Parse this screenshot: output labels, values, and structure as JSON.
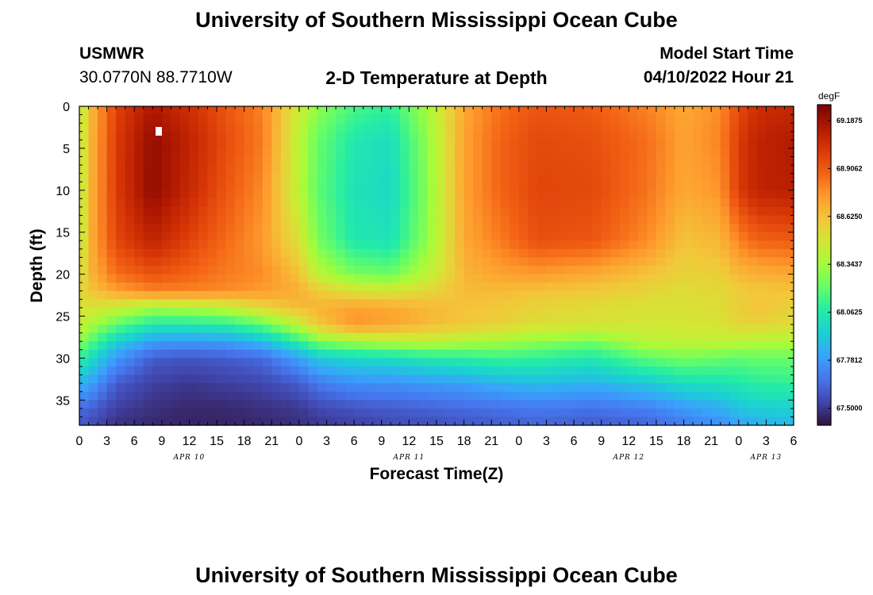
{
  "page": {
    "title": "University of Southern Mississippi Ocean Cube",
    "footer_title": "University of Southern Mississippi Ocean Cube",
    "station": "USMWR",
    "coords": "30.0770N  88.7710W",
    "model_start_label": "Model Start Time",
    "model_start_value": "04/10/2022 Hour 21"
  },
  "chart_data": {
    "type": "heatmap",
    "title": "2-D Temperature at Depth",
    "xlabel": "Forecast Time(Z)",
    "ylabel": "Depth (ft)",
    "xlim": [
      0,
      78
    ],
    "ylim": [
      38,
      0
    ],
    "x_ticks": [
      0,
      3,
      6,
      9,
      12,
      15,
      18,
      21,
      24,
      27,
      30,
      33,
      36,
      39,
      42,
      45,
      48,
      51,
      54,
      57,
      60,
      63,
      66,
      69,
      72,
      75,
      78
    ],
    "x_tick_labels": [
      "0",
      "3",
      "6",
      "9",
      "12",
      "15",
      "18",
      "21",
      "0",
      "3",
      "6",
      "9",
      "12",
      "15",
      "18",
      "21",
      "0",
      "3",
      "6",
      "9",
      "12",
      "15",
      "18",
      "21",
      "0",
      "3",
      "6"
    ],
    "y_ticks": [
      0,
      5,
      10,
      15,
      20,
      25,
      30,
      35
    ],
    "y_tick_labels": [
      "0",
      "5",
      "10",
      "15",
      "20",
      "25",
      "30",
      "35"
    ],
    "date_labels": [
      {
        "x": 12,
        "text": "APR 10"
      },
      {
        "x": 36,
        "text": "APR 11"
      },
      {
        "x": 60,
        "text": "APR 12"
      },
      {
        "x": 75,
        "text": "APR 13"
      }
    ],
    "colorbar": {
      "unit": "degF",
      "min": 67.4,
      "max": 69.28,
      "ticks": [
        69.1875,
        68.9062,
        68.625,
        68.3437,
        68.0625,
        67.7812,
        67.5
      ],
      "tick_labels": [
        "69.1875",
        "68.9062",
        "68.6250",
        "68.3437",
        "68.0625",
        "67.7812",
        "67.5000"
      ],
      "colors": [
        "#30123b",
        "#4145ab",
        "#4675ed",
        "#39a2fc",
        "#1bcfd4",
        "#24eca6",
        "#61fc6c",
        "#a4fc3b",
        "#d1e834",
        "#f3c63a",
        "#fe9b2d",
        "#f36315",
        "#d93806",
        "#b11901",
        "#7a0402"
      ]
    },
    "anchors": {
      "x": [
        0,
        1,
        4,
        8,
        12,
        16,
        20,
        24,
        26,
        30,
        34,
        38,
        42,
        46,
        50,
        56,
        62,
        66,
        70,
        72,
        74,
        78
      ],
      "z": [
        0,
        4,
        10,
        16,
        20,
        22,
        24,
        26,
        28,
        30,
        33,
        36,
        38
      ],
      "values": [
        [
          68.35,
          68.36,
          68.36,
          68.36,
          68.45,
          68.52,
          68.5,
          68.45,
          68.3,
          68.1,
          67.85,
          67.65,
          67.6
        ],
        [
          68.62,
          68.63,
          68.64,
          68.66,
          68.65,
          68.6,
          68.5,
          68.38,
          68.2,
          68.02,
          67.82,
          67.62,
          67.56
        ],
        [
          68.98,
          69.0,
          69.0,
          68.96,
          68.85,
          68.72,
          68.45,
          68.2,
          67.95,
          67.78,
          67.6,
          67.52,
          67.48
        ],
        [
          69.15,
          69.22,
          69.23,
          69.1,
          68.93,
          68.8,
          68.35,
          68.05,
          67.8,
          67.6,
          67.52,
          67.48,
          67.46
        ],
        [
          69.05,
          69.1,
          69.08,
          68.98,
          68.88,
          68.8,
          68.38,
          68.05,
          67.78,
          67.58,
          67.5,
          67.46,
          67.45
        ],
        [
          68.92,
          68.95,
          68.92,
          68.86,
          68.82,
          68.78,
          68.42,
          68.08,
          67.8,
          67.6,
          67.52,
          67.46,
          67.45
        ],
        [
          68.8,
          68.82,
          68.78,
          68.74,
          68.78,
          68.74,
          68.55,
          68.2,
          67.88,
          67.64,
          67.54,
          67.48,
          67.46
        ],
        [
          68.45,
          68.4,
          68.4,
          68.5,
          68.62,
          68.68,
          68.65,
          68.42,
          68.1,
          67.8,
          67.6,
          67.5,
          67.48
        ],
        [
          68.3,
          68.22,
          68.2,
          68.25,
          68.4,
          68.6,
          68.66,
          68.6,
          68.25,
          67.92,
          67.68,
          67.54,
          67.5
        ],
        [
          68.15,
          68.05,
          68.02,
          68.05,
          68.25,
          68.5,
          68.72,
          68.76,
          68.35,
          67.98,
          67.75,
          67.58,
          67.52
        ],
        [
          68.1,
          68.0,
          67.98,
          68.02,
          68.22,
          68.48,
          68.7,
          68.72,
          68.4,
          68.0,
          67.75,
          67.6,
          67.55
        ],
        [
          68.35,
          68.3,
          68.28,
          68.3,
          68.4,
          68.55,
          68.65,
          68.65,
          68.42,
          68.05,
          67.78,
          67.62,
          67.56
        ],
        [
          68.7,
          68.72,
          68.72,
          68.7,
          68.66,
          68.64,
          68.62,
          68.6,
          68.38,
          68.08,
          67.8,
          67.64,
          67.58
        ],
        [
          68.85,
          68.88,
          68.88,
          68.82,
          68.72,
          68.64,
          68.6,
          68.56,
          68.35,
          68.12,
          67.85,
          67.66,
          67.6
        ],
        [
          68.92,
          68.96,
          68.97,
          68.94,
          68.74,
          68.62,
          68.55,
          68.52,
          68.3,
          68.1,
          67.88,
          67.68,
          67.62
        ],
        [
          68.9,
          68.94,
          68.96,
          68.92,
          68.7,
          68.6,
          68.52,
          68.5,
          68.25,
          68.05,
          67.85,
          67.66,
          67.6
        ],
        [
          68.8,
          68.85,
          68.84,
          68.78,
          68.62,
          68.55,
          68.5,
          68.48,
          68.4,
          68.2,
          67.92,
          67.7,
          67.62
        ],
        [
          68.7,
          68.72,
          68.7,
          68.62,
          68.56,
          68.52,
          68.5,
          68.48,
          68.42,
          68.25,
          68.0,
          67.78,
          67.68
        ],
        [
          68.78,
          68.8,
          68.76,
          68.66,
          68.58,
          68.54,
          68.52,
          68.5,
          68.42,
          68.22,
          68.02,
          67.84,
          67.74
        ],
        [
          68.95,
          69.0,
          69.0,
          68.8,
          68.65,
          68.58,
          68.58,
          68.55,
          68.4,
          68.2,
          68.05,
          67.9,
          67.8
        ],
        [
          69.05,
          69.1,
          69.1,
          68.88,
          68.68,
          68.6,
          68.62,
          68.56,
          68.38,
          68.22,
          68.08,
          67.94,
          67.84
        ],
        [
          69.08,
          69.14,
          69.12,
          68.9,
          68.7,
          68.62,
          68.56,
          68.52,
          68.38,
          68.22,
          68.1,
          67.96,
          67.86
        ]
      ]
    }
  }
}
